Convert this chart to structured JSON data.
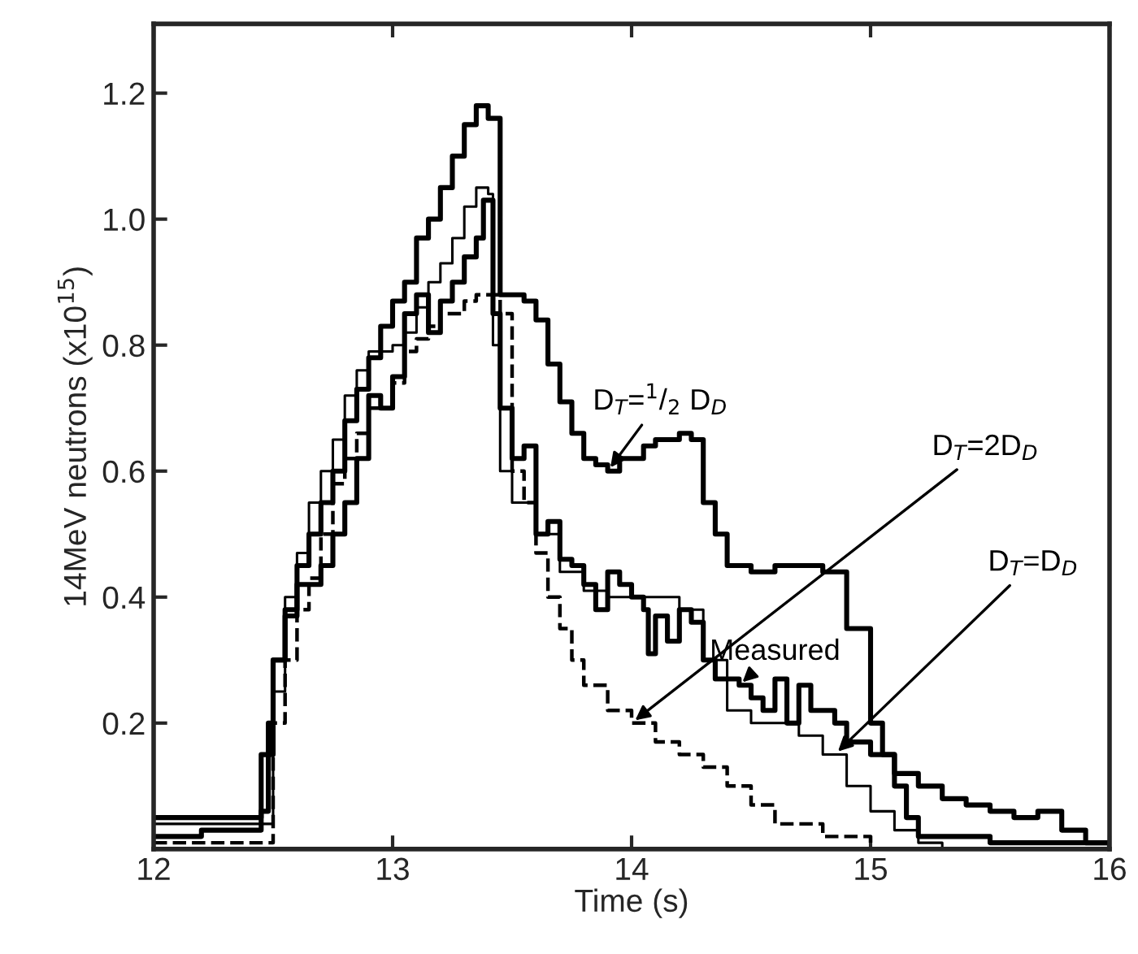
{
  "chart_data": {
    "type": "step",
    "xlabel": "Time (s)",
    "ylabel": "14MeV neutrons (x10$^{15}$)",
    "xlim": [
      12,
      16
    ],
    "ylim": [
      0,
      1.31
    ],
    "xticks": [
      12,
      13,
      14,
      15,
      16
    ],
    "yticks": [
      0.2,
      0.4,
      0.6,
      0.8,
      {
        "value": 1.0,
        "label": "1.0"
      },
      1.2
    ],
    "grid": false,
    "legend": false,
    "series": [
      {
        "name": "D$_{T}$=$^{1}$/$_{2}$ D$_{D}$",
        "color": "#000000",
        "line_style": "solid",
        "x": [
          12.0,
          12.45,
          12.48,
          12.5,
          12.55,
          12.6,
          12.65,
          12.7,
          12.75,
          12.8,
          12.85,
          12.9,
          12.95,
          13.0,
          13.05,
          13.1,
          13.15,
          13.2,
          13.25,
          13.3,
          13.35,
          13.4,
          13.45,
          13.55,
          13.6,
          13.65,
          13.7,
          13.75,
          13.8,
          13.85,
          13.9,
          13.95,
          14.0,
          14.05,
          14.1,
          14.2,
          14.25,
          14.3,
          14.35,
          14.4,
          14.5,
          14.6,
          14.7,
          14.8,
          14.9,
          15.0,
          15.05,
          15.1,
          15.15,
          15.2,
          15.5,
          16.0
        ],
        "values": [
          0.05,
          0.06,
          0.2,
          0.3,
          0.37,
          0.45,
          0.5,
          0.55,
          0.6,
          0.68,
          0.73,
          0.78,
          0.83,
          0.87,
          0.9,
          0.97,
          1.0,
          1.05,
          1.1,
          1.15,
          1.18,
          1.16,
          0.88,
          0.87,
          0.84,
          0.77,
          0.71,
          0.66,
          0.62,
          0.61,
          0.6,
          0.62,
          0.62,
          0.64,
          0.65,
          0.66,
          0.65,
          0.55,
          0.5,
          0.45,
          0.44,
          0.45,
          0.45,
          0.44,
          0.35,
          0.2,
          0.15,
          0.1,
          0.05,
          0.02,
          0.01,
          0.0
        ]
      },
      {
        "name": "Measured",
        "color": "#000000",
        "line_style": "solid",
        "x": [
          12.0,
          12.2,
          12.4,
          12.45,
          12.5,
          12.55,
          12.6,
          12.7,
          12.75,
          12.8,
          12.85,
          12.9,
          12.95,
          13.0,
          13.05,
          13.1,
          13.15,
          13.2,
          13.25,
          13.3,
          13.35,
          13.38,
          13.42,
          13.45,
          13.5,
          13.55,
          13.6,
          13.65,
          13.7,
          13.75,
          13.8,
          13.85,
          13.9,
          13.95,
          14.0,
          14.05,
          14.07,
          14.1,
          14.15,
          14.2,
          14.25,
          14.3,
          14.35,
          14.45,
          14.5,
          14.55,
          14.6,
          14.65,
          14.7,
          14.75,
          14.85,
          14.9,
          15.0,
          15.1,
          15.2,
          15.3,
          15.4,
          15.5,
          15.6,
          15.7,
          15.8,
          15.9,
          16.0
        ],
        "values": [
          0.02,
          0.03,
          0.03,
          0.15,
          0.3,
          0.38,
          0.42,
          0.45,
          0.5,
          0.55,
          0.62,
          0.72,
          0.7,
          0.75,
          0.85,
          0.88,
          0.82,
          0.87,
          0.9,
          0.94,
          0.97,
          1.03,
          0.85,
          0.7,
          0.62,
          0.64,
          0.5,
          0.52,
          0.46,
          0.45,
          0.42,
          0.38,
          0.44,
          0.42,
          0.4,
          0.38,
          0.31,
          0.37,
          0.33,
          0.38,
          0.36,
          0.3,
          0.27,
          0.26,
          0.24,
          0.22,
          0.27,
          0.2,
          0.26,
          0.22,
          0.2,
          0.17,
          0.15,
          0.12,
          0.1,
          0.08,
          0.07,
          0.06,
          0.05,
          0.06,
          0.03,
          0.01,
          0.0
        ]
      },
      {
        "name": "D$_{T}$=2D$_{D}$",
        "color": "#000000",
        "line_style": "dashed",
        "x": [
          12.0,
          12.45,
          12.5,
          12.55,
          12.6,
          12.65,
          12.7,
          12.75,
          12.8,
          12.85,
          12.9,
          13.0,
          13.05,
          13.1,
          13.15,
          13.2,
          13.3,
          13.35,
          13.45,
          13.5,
          13.55,
          13.6,
          13.65,
          13.7,
          13.75,
          13.8,
          13.9,
          14.0,
          14.1,
          14.2,
          14.3,
          14.4,
          14.5,
          14.6,
          14.8,
          15.0
        ],
        "values": [
          0.01,
          0.01,
          0.2,
          0.3,
          0.38,
          0.43,
          0.5,
          0.58,
          0.62,
          0.66,
          0.7,
          0.74,
          0.79,
          0.81,
          0.83,
          0.85,
          0.87,
          0.88,
          0.85,
          0.6,
          0.55,
          0.47,
          0.4,
          0.35,
          0.3,
          0.26,
          0.22,
          0.2,
          0.17,
          0.15,
          0.13,
          0.1,
          0.07,
          0.04,
          0.02,
          0.0
        ]
      },
      {
        "name": "D$_{T}$=D$_{D}$",
        "color": "#000000",
        "line_style": "solid",
        "x": [
          12.0,
          12.45,
          12.5,
          12.55,
          12.6,
          12.65,
          12.7,
          12.75,
          12.8,
          12.85,
          12.9,
          13.0,
          13.05,
          13.1,
          13.15,
          13.2,
          13.25,
          13.3,
          13.35,
          13.4,
          13.42,
          13.45,
          13.5,
          13.6,
          13.7,
          13.8,
          13.9,
          14.0,
          14.2,
          14.3,
          14.4,
          14.5,
          14.7,
          14.8,
          14.9,
          15.0,
          15.1,
          15.2,
          15.3
        ],
        "values": [
          0.04,
          0.04,
          0.25,
          0.4,
          0.47,
          0.55,
          0.6,
          0.65,
          0.72,
          0.76,
          0.79,
          0.8,
          0.82,
          0.86,
          0.9,
          0.93,
          0.97,
          1.02,
          1.05,
          1.04,
          0.8,
          0.6,
          0.55,
          0.5,
          0.44,
          0.41,
          0.4,
          0.4,
          0.38,
          0.3,
          0.22,
          0.2,
          0.18,
          0.15,
          0.1,
          0.06,
          0.03,
          0.01,
          0.0
        ]
      }
    ]
  }
}
